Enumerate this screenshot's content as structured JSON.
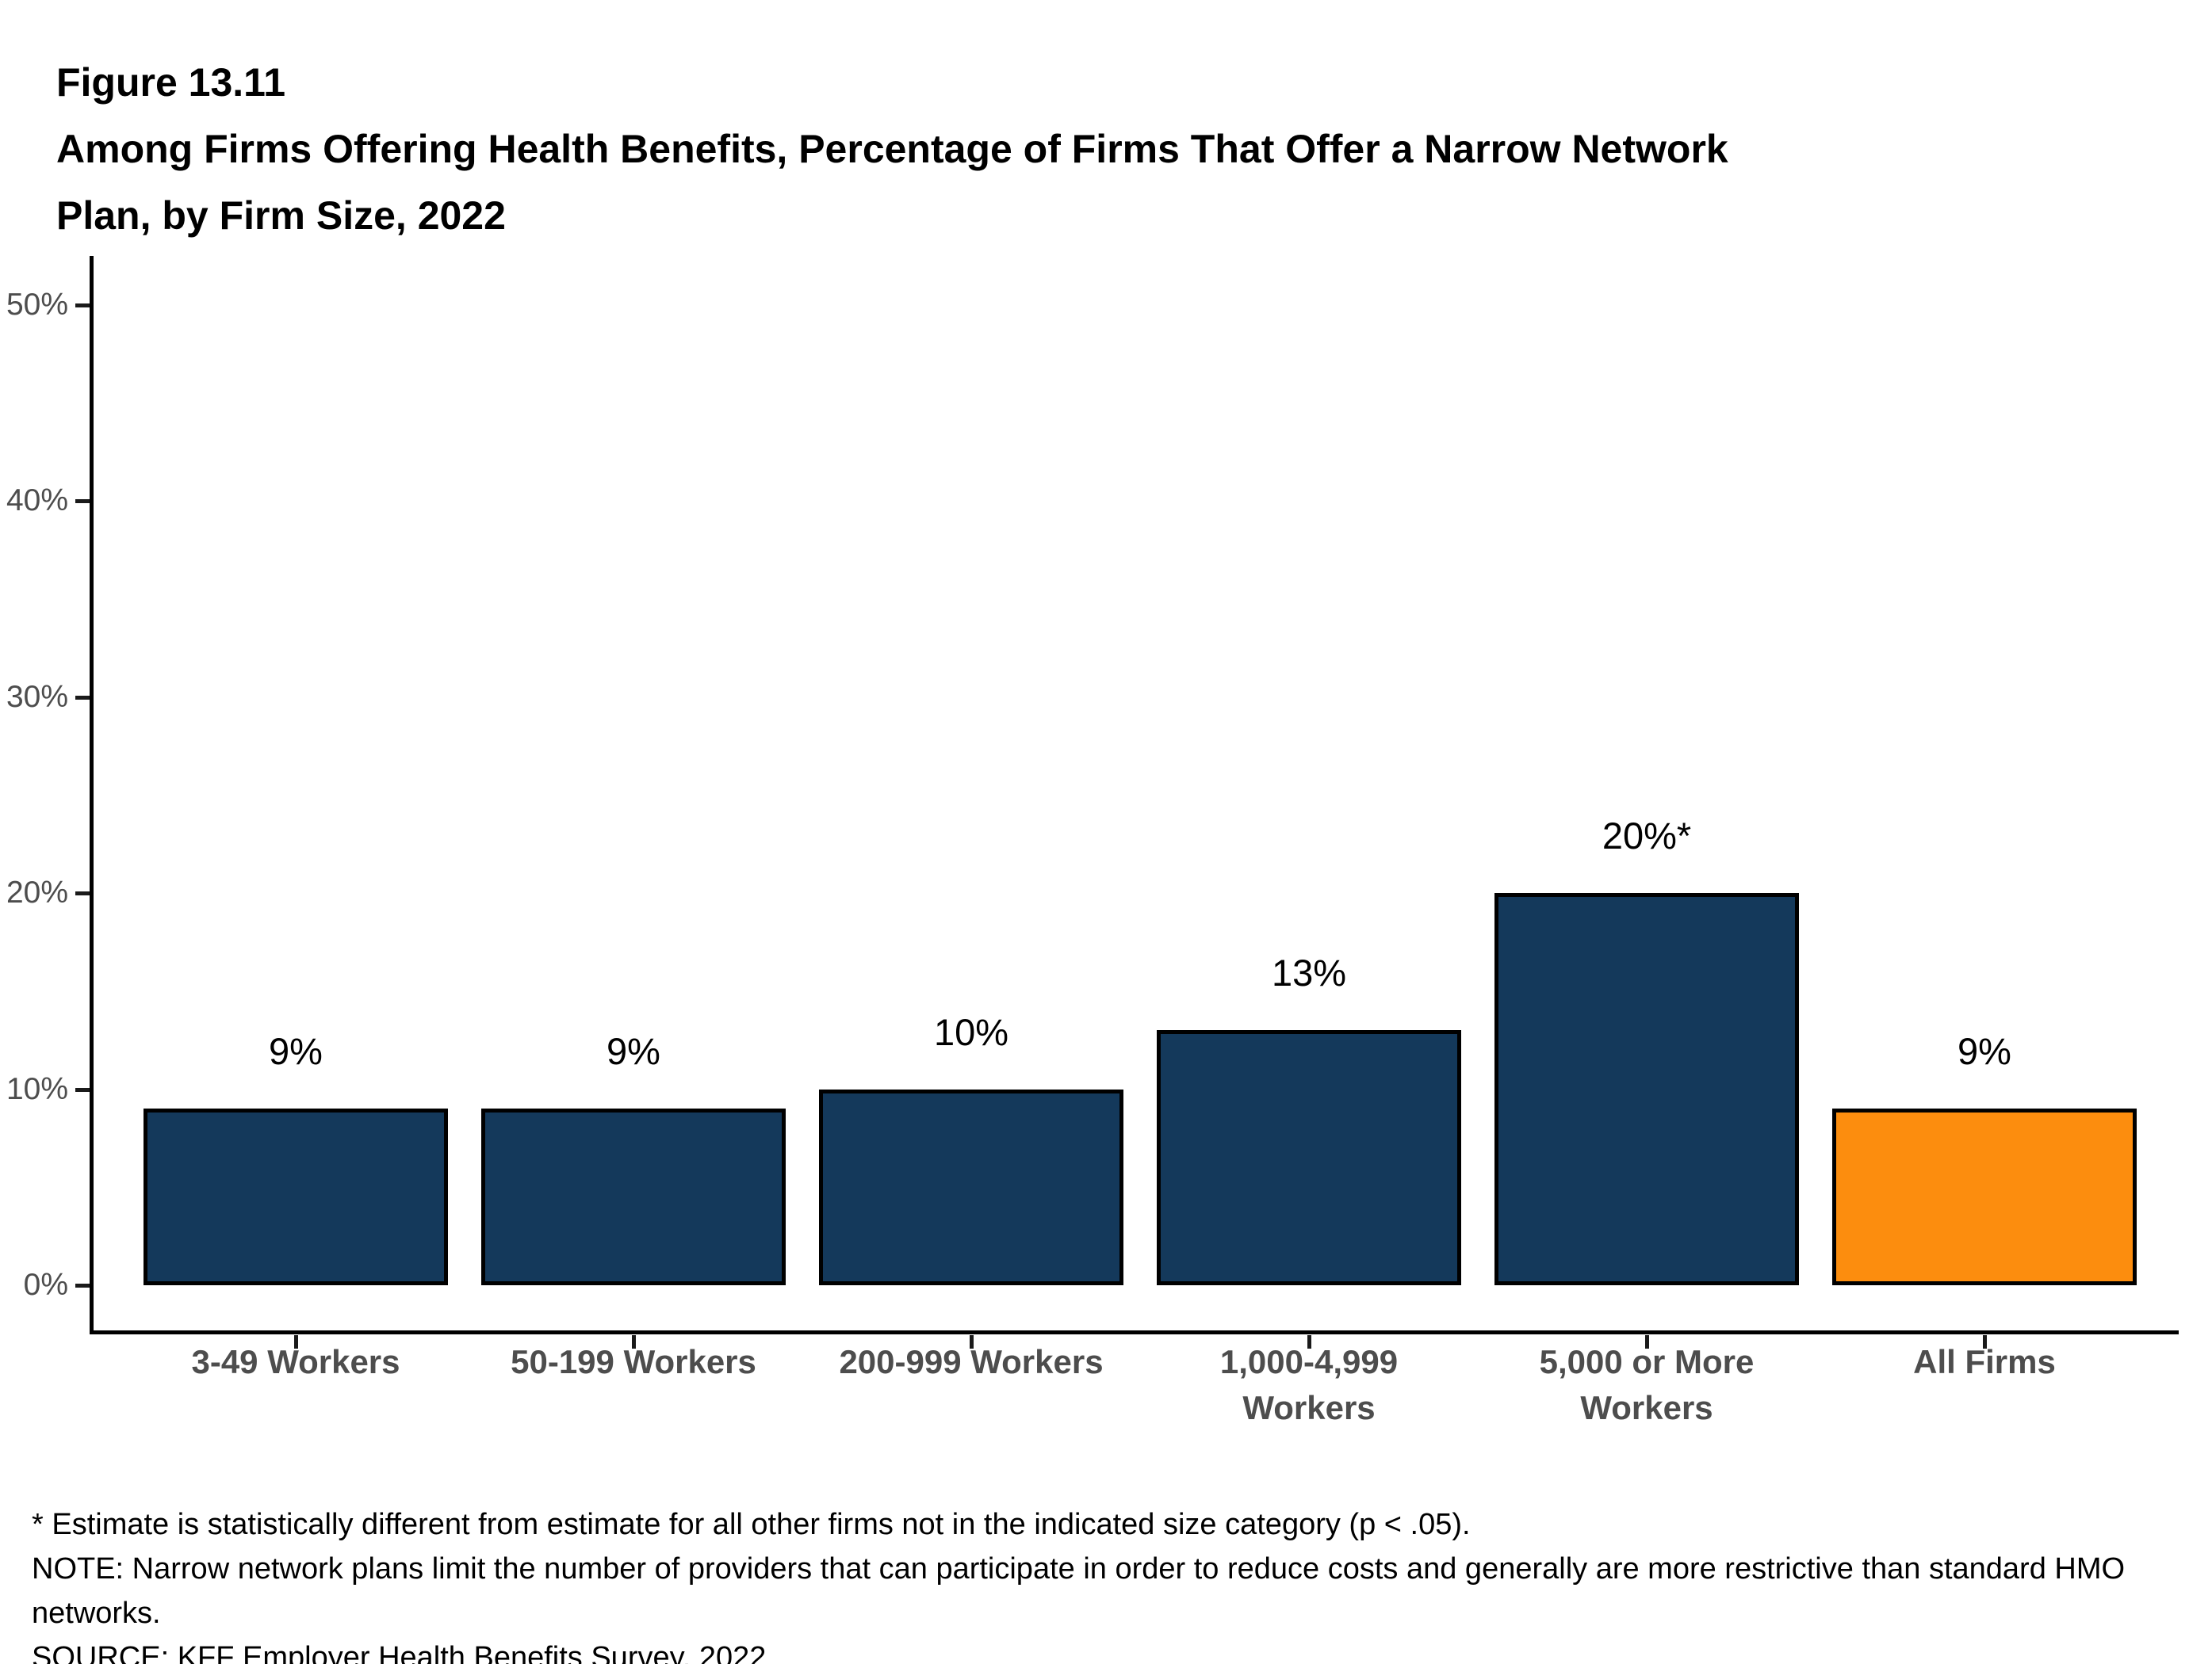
{
  "header": {
    "figure_label": "Figure 13.11",
    "title_line1": "Among Firms Offering Health Benefits, Percentage of Firms That Offer a Narrow Network",
    "title_line2": "Plan, by Firm Size, 2022"
  },
  "chart_data": {
    "type": "bar",
    "title": "Among Firms Offering Health Benefits, Percentage of Firms That Offer a Narrow Network Plan, by Firm Size, 2022",
    "figure_number": "Figure 13.11",
    "categories": [
      "3-49 Workers",
      "50-199 Workers",
      "200-999 Workers",
      "1,000-4,999\nWorkers",
      "5,000 or More\nWorkers",
      "All Firms"
    ],
    "values": [
      9,
      9,
      10,
      13,
      20,
      9
    ],
    "bar_labels": [
      "9%",
      "9%",
      "10%",
      "13%",
      "20%*",
      "9%"
    ],
    "bar_colors": [
      "#14395B",
      "#14395B",
      "#14395B",
      "#14395B",
      "#14395B",
      "#FC8D0E"
    ],
    "xlabel": "",
    "ylabel": "",
    "ylim": [
      0,
      52
    ],
    "yticks_percent": [
      0,
      10,
      20,
      30,
      40,
      50
    ],
    "ytick_labels": [
      "0%",
      "10%",
      "20%",
      "30%",
      "40%",
      "50%"
    ],
    "grid": false,
    "legend": "none",
    "colors": {
      "bar_default": "#14395B",
      "bar_highlight": "#FC8D0E",
      "axis_line": "#000000",
      "ytick_label": "#4d4d4d",
      "category_label": "#4d4d4d",
      "data_label": "#000000"
    }
  },
  "footnotes": {
    "asterisk_note": "* Estimate is statistically different from estimate for all other firms not in the indicated size category (p < .05).",
    "note": "NOTE: Narrow network plans limit the number of providers that can participate in order to reduce costs and generally are more restrictive than standard HMO networks.",
    "source": "SOURCE: KFF Employer Health Benefits Survey, 2022"
  }
}
